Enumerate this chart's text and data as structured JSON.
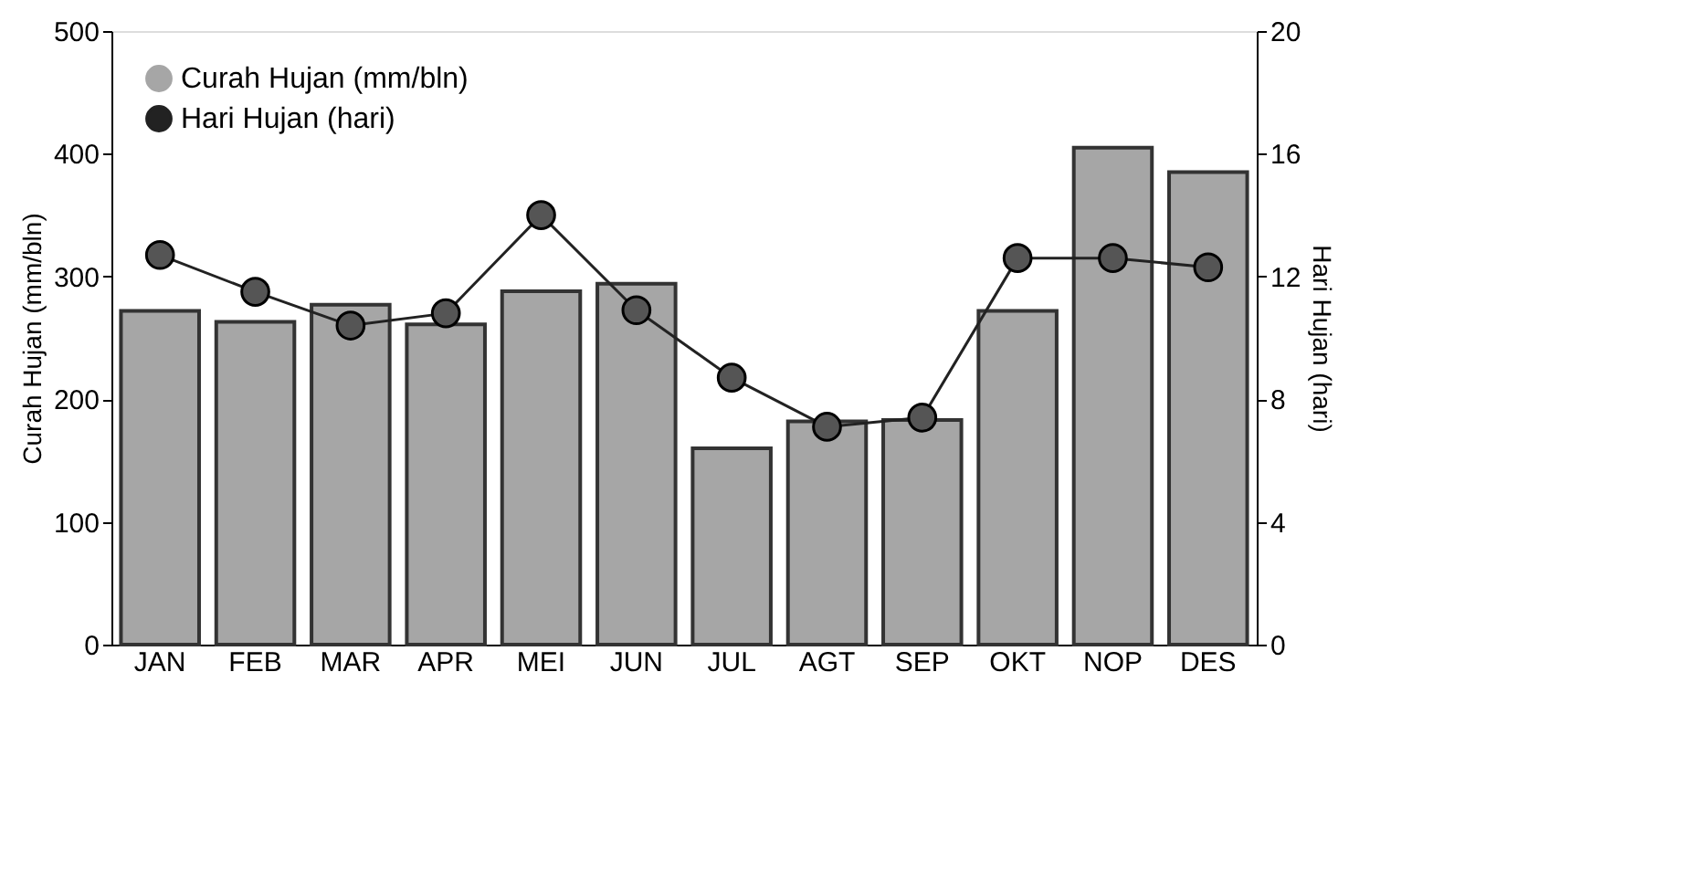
{
  "chart_data": {
    "type": "bar",
    "categories": [
      "JAN",
      "FEB",
      "MAR",
      "APR",
      "MEI",
      "JUN",
      "JUL",
      "AGT",
      "SEP",
      "OKT",
      "NOP",
      "DES"
    ],
    "ylabel": "Curah Hujan (mm/bln)",
    "y2label": "Hari Hujan (hari)",
    "series": [
      {
        "name": "Curah Hujan (mm/bln)",
        "color": "#a6a6a6",
        "values": [
          272,
          263,
          277,
          261,
          288,
          294,
          160,
          182,
          183,
          272,
          405,
          385
        ]
      },
      {
        "name": "Hari Hujan (hari)",
        "type": "line",
        "axis": "y2",
        "color": "#222222",
        "marker": "circle",
        "values": [
          12.7,
          11.5,
          10.4,
          10.8,
          14.0,
          10.9,
          8.7,
          7.1,
          7.4,
          12.6,
          12.6,
          12.3
        ]
      }
    ],
    "ylim": [
      0,
      500
    ],
    "yticks": [
      0,
      100,
      200,
      300,
      400,
      500
    ],
    "y2lim": [
      0,
      20
    ],
    "y2ticks": [
      0,
      4,
      8,
      12,
      16,
      20
    ],
    "grid": false,
    "legend": "top left"
  }
}
